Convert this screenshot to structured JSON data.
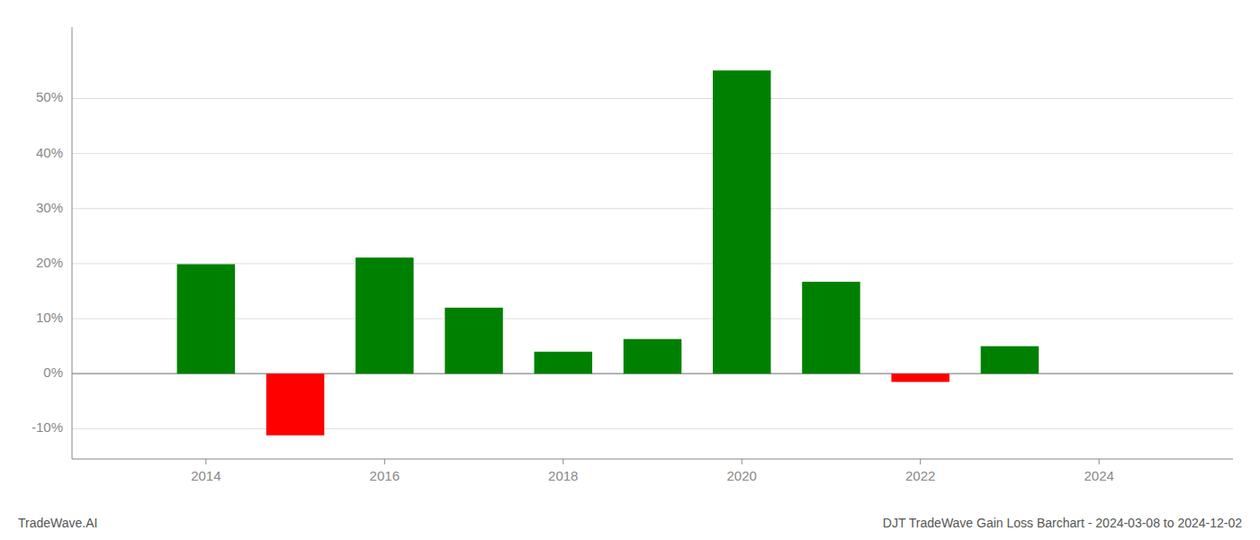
{
  "chart_data": {
    "type": "bar",
    "title": "DJT TradeWave Gain Loss Barchart - 2024-03-08 to 2024-12-02",
    "annotations": [
      "TradeWave.AI"
    ],
    "x": [
      2014,
      2015,
      2016,
      2017,
      2018,
      2019,
      2020,
      2021,
      2022,
      2023
    ],
    "values": [
      0.199,
      -0.112,
      0.211,
      0.12,
      0.04,
      0.063,
      0.551,
      0.167,
      -0.015,
      0.05
    ],
    "colors": [
      "#008000",
      "#ff0000",
      "#008000",
      "#008000",
      "#008000",
      "#008000",
      "#008000",
      "#008000",
      "#ff0000",
      "#008000"
    ],
    "xlim": [
      2012.5,
      2025.5
    ],
    "ylim": [
      -0.155,
      0.63
    ],
    "xticks": [
      2014,
      2016,
      2018,
      2020,
      2022,
      2024
    ],
    "yticks": [
      {
        "value": -0.1,
        "label": "-10%"
      },
      {
        "value": 0.0,
        "label": "0%"
      },
      {
        "value": 0.1,
        "label": "10%"
      },
      {
        "value": 0.2,
        "label": "20%"
      },
      {
        "value": 0.3,
        "label": "30%"
      },
      {
        "value": 0.4,
        "label": "40%"
      },
      {
        "value": 0.5,
        "label": "50%"
      }
    ],
    "grid": true
  }
}
